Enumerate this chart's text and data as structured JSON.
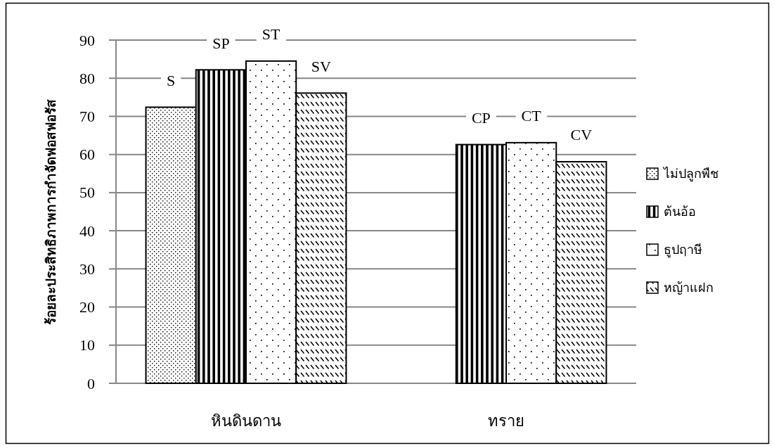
{
  "chart_data": {
    "type": "bar",
    "ylabel": "ร้อยละประสิทธิภาพการกำจัดฟอสฟอรัส",
    "categories": [
      "หินดินดาน",
      "ทราย"
    ],
    "series": [
      {
        "name": "ไม่ปลูกพืช",
        "color": "#000000",
        "values": [
          72.4,
          null
        ],
        "value_labels": [
          "S",
          null
        ]
      },
      {
        "name": "ต้นอ้อ",
        "color": "#000000",
        "values": [
          82.2,
          62.6
        ],
        "value_labels": [
          "SP",
          "CP"
        ]
      },
      {
        "name": "ธูปฤาษี",
        "color": "#000000",
        "values": [
          84.5,
          63.1
        ],
        "value_labels": [
          "ST",
          "CT"
        ]
      },
      {
        "name": "หญ้าแฝก",
        "color": "#000000",
        "values": [
          76.1,
          58.1
        ],
        "value_labels": [
          "SV",
          "CV"
        ]
      }
    ],
    "ylim": [
      0,
      90
    ],
    "yticks": [
      0,
      10,
      20,
      30,
      40,
      50,
      60,
      70,
      80,
      90
    ],
    "grid": "y",
    "legend": "right"
  }
}
